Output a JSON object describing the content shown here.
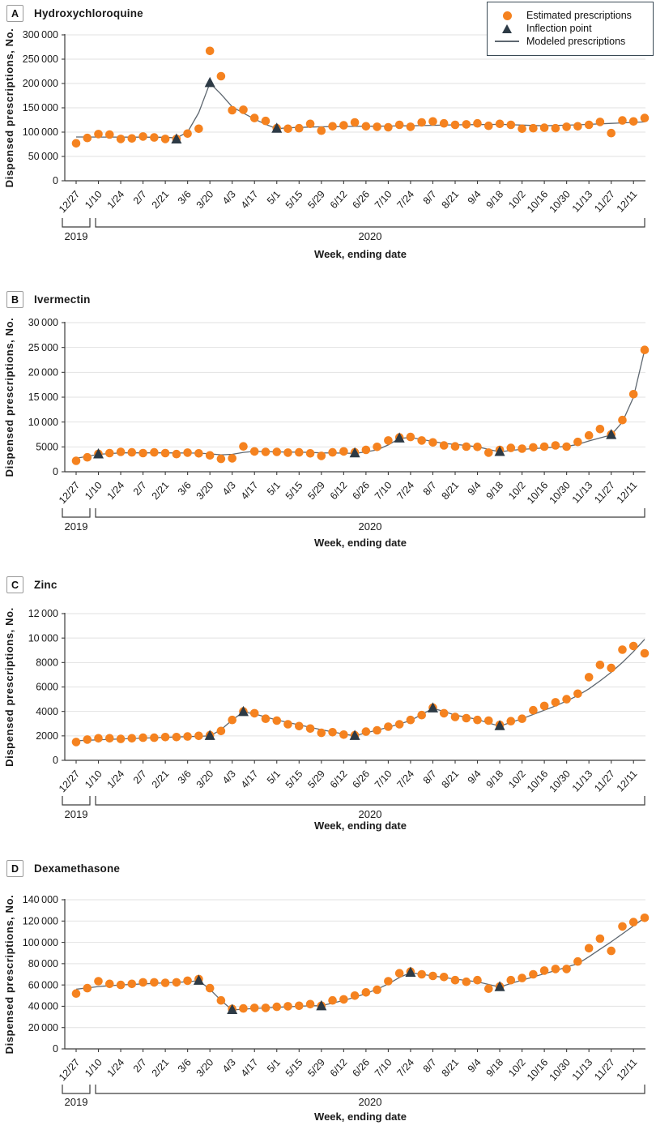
{
  "colors": {
    "estimated": "#F5821F",
    "inflection": "#2D3A45",
    "model_line": "#5E6770",
    "gridline": "#E2E2E2",
    "axis": "#3C3C3C",
    "text": "#1A1A1A"
  },
  "legend": {
    "items": [
      {
        "icon": "estimated-dot-icon",
        "label": "Estimated prescriptions"
      },
      {
        "icon": "inflection-triangle-icon",
        "label": "Inflection point"
      },
      {
        "icon": "modeled-line-icon",
        "label": "Modeled prescriptions"
      }
    ]
  },
  "shared": {
    "xlabel": "Week, ending date",
    "ylabel": "Dispensed prescriptions, No.",
    "n_weeks": 52,
    "x_tick_labels": [
      "12/27",
      "1/10",
      "1/24",
      "2/7",
      "2/21",
      "3/6",
      "3/20",
      "4/3",
      "4/17",
      "5/1",
      "5/15",
      "5/29",
      "6/12",
      "6/26",
      "7/10",
      "7/24",
      "8/7",
      "8/21",
      "9/4",
      "9/18",
      "10/2",
      "10/16",
      "10/30",
      "11/13",
      "11/27",
      "12/11"
    ],
    "x_tick_weeks": [
      0,
      2,
      4,
      6,
      8,
      10,
      12,
      14,
      16,
      18,
      20,
      22,
      24,
      26,
      28,
      30,
      32,
      34,
      36,
      38,
      40,
      42,
      44,
      46,
      48,
      50
    ],
    "year_groups": [
      {
        "label": "2019",
        "week_start": 0,
        "week_end": 0
      },
      {
        "label": "2020",
        "week_start": 1,
        "week_end": 51
      }
    ]
  },
  "chart_data": [
    {
      "type": "scatter",
      "letter": "A",
      "title": "Hydroxychloroquine",
      "ylabel": "Dispensed prescriptions, No.",
      "xlabel": "Week, ending date",
      "ylim": [
        0,
        300000
      ],
      "ytick_step": 50000,
      "ytick_labels": [
        "0",
        "50 000",
        "100 000",
        "150 000",
        "200 000",
        "250 000",
        "300 000"
      ],
      "grid": true,
      "legend_position": "top-right",
      "estimated": [
        77000,
        88000,
        96000,
        95000,
        86000,
        87000,
        91000,
        89000,
        86000,
        86000,
        97000,
        107000,
        267000,
        215000,
        145000,
        146000,
        129000,
        123000,
        108000,
        107000,
        108000,
        117000,
        103000,
        112000,
        114000,
        120000,
        112000,
        111000,
        110000,
        115000,
        111000,
        120000,
        122000,
        118000,
        115000,
        116000,
        118000,
        113000,
        117000,
        115000,
        107000,
        108000,
        109000,
        108000,
        111000,
        112000,
        115000,
        121000,
        98000,
        124000,
        122000,
        129000
      ],
      "inflection_points": [
        [
          9,
          85000
        ],
        [
          12,
          201000
        ],
        [
          18,
          107000
        ]
      ],
      "model_anchors": [
        [
          0,
          90000
        ],
        [
          8,
          89500
        ],
        [
          9,
          88000
        ],
        [
          10,
          100000
        ],
        [
          11,
          140000
        ],
        [
          12,
          201000
        ],
        [
          13,
          178000
        ],
        [
          14,
          152000
        ],
        [
          15,
          139000
        ],
        [
          16,
          127000
        ],
        [
          17,
          116000
        ],
        [
          18,
          107000
        ],
        [
          19,
          109000
        ],
        [
          22,
          111000
        ],
        [
          26,
          112000
        ],
        [
          30,
          113000
        ],
        [
          34,
          115000
        ],
        [
          38,
          116000
        ],
        [
          42,
          113000
        ],
        [
          45,
          115000
        ],
        [
          48,
          118000
        ],
        [
          51,
          121000
        ]
      ]
    },
    {
      "type": "scatter",
      "letter": "B",
      "title": "Ivermectin",
      "ylabel": "Dispensed prescriptions, No.",
      "xlabel": "Week, ending date",
      "ylim": [
        0,
        30000
      ],
      "ytick_step": 5000,
      "ytick_labels": [
        "0",
        "5000",
        "10 000",
        "15 000",
        "20 000",
        "25 000",
        "30 000"
      ],
      "grid": true,
      "legend_position": "none",
      "estimated": [
        2200,
        2900,
        3600,
        3750,
        4000,
        3900,
        3750,
        3900,
        3750,
        3550,
        3850,
        3700,
        3300,
        2600,
        2700,
        5100,
        4100,
        4000,
        4000,
        3850,
        3900,
        3700,
        3200,
        3900,
        4100,
        3900,
        4400,
        5000,
        6300,
        6900,
        7000,
        6300,
        5900,
        5300,
        5100,
        5050,
        5000,
        3850,
        4400,
        4800,
        4650,
        4900,
        5050,
        5300,
        5050,
        6000,
        7300,
        8600,
        7500,
        10400,
        15600,
        24500
      ],
      "inflection_points": [
        [
          2,
          3500
        ],
        [
          25,
          3700
        ],
        [
          29,
          6700
        ],
        [
          38,
          4000
        ],
        [
          48,
          7400
        ]
      ],
      "model_anchors": [
        [
          0,
          2700
        ],
        [
          2,
          3500
        ],
        [
          4,
          3800
        ],
        [
          8,
          3800
        ],
        [
          11,
          3750
        ],
        [
          12,
          3600
        ],
        [
          13,
          3400
        ],
        [
          14,
          3500
        ],
        [
          15,
          3900
        ],
        [
          16,
          4100
        ],
        [
          18,
          4000
        ],
        [
          21,
          3900
        ],
        [
          22,
          3800
        ],
        [
          24,
          3750
        ],
        [
          25,
          3700
        ],
        [
          26,
          4000
        ],
        [
          27,
          4400
        ],
        [
          28,
          5400
        ],
        [
          29,
          6700
        ],
        [
          30,
          6900
        ],
        [
          31,
          6500
        ],
        [
          33,
          5700
        ],
        [
          35,
          5300
        ],
        [
          36,
          5000
        ],
        [
          37,
          4500
        ],
        [
          38,
          4000
        ],
        [
          39,
          4300
        ],
        [
          40,
          4500
        ],
        [
          42,
          4800
        ],
        [
          44,
          5100
        ],
        [
          45,
          5500
        ],
        [
          46,
          6200
        ],
        [
          47,
          6800
        ],
        [
          48,
          7400
        ],
        [
          49,
          10000
        ],
        [
          50,
          15000
        ],
        [
          51,
          24500
        ]
      ]
    },
    {
      "type": "scatter",
      "letter": "C",
      "title": "Zinc",
      "ylabel": "Dispensed prescriptions, No.",
      "xlabel": "Week, ending date",
      "ylim": [
        0,
        12000
      ],
      "ytick_step": 2000,
      "ytick_labels": [
        "0",
        "2000",
        "4000",
        "6000",
        "8000",
        "10 000",
        "12 000"
      ],
      "grid": true,
      "legend_position": "none",
      "estimated": [
        1500,
        1700,
        1800,
        1800,
        1750,
        1800,
        1850,
        1850,
        1900,
        1900,
        1950,
        2000,
        2050,
        2400,
        3300,
        4000,
        3850,
        3400,
        3250,
        2950,
        2800,
        2600,
        2250,
        2300,
        2100,
        2050,
        2350,
        2450,
        2750,
        2950,
        3300,
        3700,
        4300,
        3850,
        3550,
        3450,
        3300,
        3250,
        2900,
        3200,
        3400,
        4100,
        4450,
        4750,
        5000,
        5450,
        6800,
        7800,
        7550,
        9050,
        9350,
        8750
      ],
      "inflection_points": [
        [
          12,
          2000
        ],
        [
          15,
          3950
        ],
        [
          25,
          2000
        ],
        [
          32,
          4250
        ],
        [
          38,
          2800
        ]
      ],
      "model_anchors": [
        [
          0,
          1600
        ],
        [
          4,
          1750
        ],
        [
          8,
          1880
        ],
        [
          11,
          1960
        ],
        [
          12,
          2000
        ],
        [
          13,
          2500
        ],
        [
          14,
          3300
        ],
        [
          15,
          3950
        ],
        [
          16,
          3800
        ],
        [
          18,
          3300
        ],
        [
          20,
          2900
        ],
        [
          22,
          2500
        ],
        [
          24,
          2150
        ],
        [
          25,
          2000
        ],
        [
          26,
          2250
        ],
        [
          28,
          2700
        ],
        [
          30,
          3250
        ],
        [
          31,
          3750
        ],
        [
          32,
          4250
        ],
        [
          33,
          4000
        ],
        [
          34,
          3700
        ],
        [
          36,
          3350
        ],
        [
          37,
          3050
        ],
        [
          38,
          2800
        ],
        [
          39,
          3100
        ],
        [
          40,
          3400
        ],
        [
          41,
          3750
        ],
        [
          42,
          4100
        ],
        [
          43,
          4450
        ],
        [
          44,
          4850
        ],
        [
          45,
          5300
        ],
        [
          46,
          5850
        ],
        [
          47,
          6500
        ],
        [
          48,
          7200
        ],
        [
          49,
          8000
        ],
        [
          50,
          8900
        ],
        [
          51,
          9900
        ]
      ]
    },
    {
      "type": "scatter",
      "letter": "D",
      "title": "Dexamethasone",
      "ylabel": "Dispensed prescriptions, No.",
      "xlabel": "Week, ending date",
      "ylim": [
        0,
        140000
      ],
      "ytick_step": 20000,
      "ytick_labels": [
        "0",
        "20 000",
        "40 000",
        "60 000",
        "80 000",
        "100 000",
        "120 000",
        "140 000"
      ],
      "grid": true,
      "legend_position": "none",
      "estimated": [
        52000,
        57000,
        63500,
        61000,
        60000,
        61000,
        62500,
        62500,
        62000,
        62500,
        64000,
        65500,
        57000,
        45500,
        37500,
        38000,
        38500,
        38500,
        39500,
        40000,
        40500,
        42000,
        40500,
        45500,
        46500,
        50000,
        53000,
        55500,
        63500,
        71000,
        72500,
        70000,
        68500,
        67500,
        64500,
        63000,
        64500,
        56500,
        58500,
        64500,
        66500,
        70000,
        73500,
        75000,
        75000,
        82000,
        94500,
        103500,
        92000,
        115000,
        119000,
        123000
      ],
      "inflection_points": [
        [
          11,
          64000
        ],
        [
          14,
          36500
        ],
        [
          22,
          40000
        ],
        [
          30,
          71500
        ],
        [
          38,
          58000
        ]
      ],
      "model_anchors": [
        [
          0,
          56000
        ],
        [
          2,
          58500
        ],
        [
          4,
          60000
        ],
        [
          7,
          61500
        ],
        [
          10,
          63000
        ],
        [
          11,
          64000
        ],
        [
          12,
          56000
        ],
        [
          13,
          45500
        ],
        [
          14,
          36500
        ],
        [
          16,
          38000
        ],
        [
          18,
          39000
        ],
        [
          20,
          40000
        ],
        [
          21,
          40500
        ],
        [
          22,
          40500
        ],
        [
          23,
          43000
        ],
        [
          24,
          45500
        ],
        [
          25,
          48500
        ],
        [
          26,
          52000
        ],
        [
          27,
          56000
        ],
        [
          28,
          61000
        ],
        [
          29,
          67000
        ],
        [
          30,
          71500
        ],
        [
          31,
          70000
        ],
        [
          32,
          68500
        ],
        [
          33,
          67000
        ],
        [
          34,
          65500
        ],
        [
          36,
          63000
        ],
        [
          37,
          60500
        ],
        [
          38,
          58000
        ],
        [
          39,
          61500
        ],
        [
          40,
          64500
        ],
        [
          41,
          67500
        ],
        [
          42,
          70500
        ],
        [
          43,
          73500
        ],
        [
          45,
          80000
        ],
        [
          46,
          86500
        ],
        [
          47,
          93500
        ],
        [
          48,
          100500
        ],
        [
          49,
          108000
        ],
        [
          50,
          115500
        ],
        [
          51,
          123000
        ]
      ]
    }
  ]
}
